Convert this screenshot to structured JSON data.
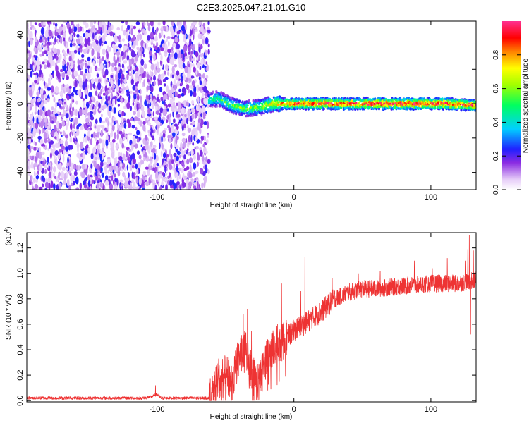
{
  "title": "C2E3.2025.047.21.01.G10",
  "chart_data": [
    {
      "type": "heatmap",
      "xlabel": "Height of straight line (km)",
      "ylabel": "Frequency (Hz)",
      "xlim": [
        -195,
        133
      ],
      "ylim": [
        -50,
        48
      ],
      "xticks": [
        -100,
        0,
        100
      ],
      "yticks": [
        -40,
        -20,
        0,
        20,
        40
      ],
      "colorbar": {
        "label": "Normalized spectral amplitude",
        "range": [
          0,
          1
        ],
        "ticks": [
          0.0,
          0.2,
          0.4,
          0.6,
          0.8
        ],
        "tick_labels": [
          "0.0",
          "0.2",
          "0.4",
          "0.6",
          "0.8"
        ]
      },
      "description": {
        "noise_region_x": [
          -195,
          -62
        ],
        "noise_amplitude": [
          0.05,
          0.25
        ],
        "signal_band_x": [
          -62,
          133
        ],
        "signal_freq_center": [
          [
            -62,
            2
          ],
          [
            -55,
            3
          ],
          [
            -45,
            -1
          ],
          [
            -35,
            -3
          ],
          [
            -25,
            -2
          ],
          [
            -15,
            0
          ],
          [
            -5,
            0
          ],
          [
            10,
            0
          ],
          [
            40,
            0
          ],
          [
            80,
            0
          ],
          [
            110,
            0
          ],
          [
            133,
            -1
          ]
        ],
        "signal_peak_amplitude": [
          [
            -62,
            0.45
          ],
          [
            -45,
            0.55
          ],
          [
            -25,
            0.6
          ],
          [
            0,
            0.9
          ],
          [
            50,
            0.95
          ],
          [
            100,
            0.95
          ],
          [
            133,
            0.9
          ]
        ]
      }
    },
    {
      "type": "line",
      "xlabel": "Height of straight line (km)",
      "ylabel": "SNR (10 * v/v)",
      "ylabel_multiplier": "(x10",
      "ylabel_exponent": "4",
      "ylabel_multiplier_close": ")",
      "xlim": [
        -195,
        133
      ],
      "ylim": [
        -0.01,
        1.32
      ],
      "xticks": [
        -100,
        0,
        100
      ],
      "yticks": [
        0.0,
        0.2,
        0.4,
        0.6,
        0.8,
        1.0,
        1.2
      ],
      "ytick_labels": [
        "0.0",
        "0.2",
        "0.4",
        "0.6",
        "0.8",
        "1.0",
        "1.2"
      ],
      "color": "#ee3333",
      "envelope": [
        [
          -195,
          0.02
        ],
        [
          -110,
          0.02
        ],
        [
          -104,
          0.03
        ],
        [
          -100,
          0.05
        ],
        [
          -97,
          0.02
        ],
        [
          -62,
          0.02
        ],
        [
          -55,
          0.15
        ],
        [
          -50,
          0.2
        ],
        [
          -45,
          0.15
        ],
        [
          -40,
          0.35
        ],
        [
          -35,
          0.4
        ],
        [
          -30,
          0.2
        ],
        [
          -25,
          0.15
        ],
        [
          -20,
          0.35
        ],
        [
          -15,
          0.4
        ],
        [
          -10,
          0.45
        ],
        [
          -5,
          0.5
        ],
        [
          0,
          0.55
        ],
        [
          10,
          0.62
        ],
        [
          20,
          0.7
        ],
        [
          30,
          0.8
        ],
        [
          40,
          0.85
        ],
        [
          50,
          0.88
        ],
        [
          60,
          0.88
        ],
        [
          80,
          0.9
        ],
        [
          100,
          0.92
        ],
        [
          120,
          0.92
        ],
        [
          133,
          0.95
        ]
      ],
      "spikes": [
        [
          -101,
          0.12
        ],
        [
          -55,
          0.33
        ],
        [
          -42,
          0.42
        ],
        [
          -37,
          0.68
        ],
        [
          -34,
          0.72
        ],
        [
          -31,
          0.55
        ],
        [
          -22,
          0.38
        ],
        [
          -17,
          0.44
        ],
        [
          -12,
          0.6
        ],
        [
          -9,
          0.92
        ],
        [
          5,
          0.86
        ],
        [
          8,
          1.13
        ],
        [
          28,
          0.96
        ],
        [
          47,
          1.0
        ],
        [
          63,
          1.02
        ],
        [
          88,
          1.1
        ],
        [
          101,
          1.04
        ],
        [
          112,
          1.12
        ],
        [
          125,
          1.1
        ],
        [
          127,
          1.19
        ],
        [
          128,
          1.3
        ],
        [
          129,
          0.52
        ],
        [
          131,
          1.18
        ]
      ]
    }
  ]
}
